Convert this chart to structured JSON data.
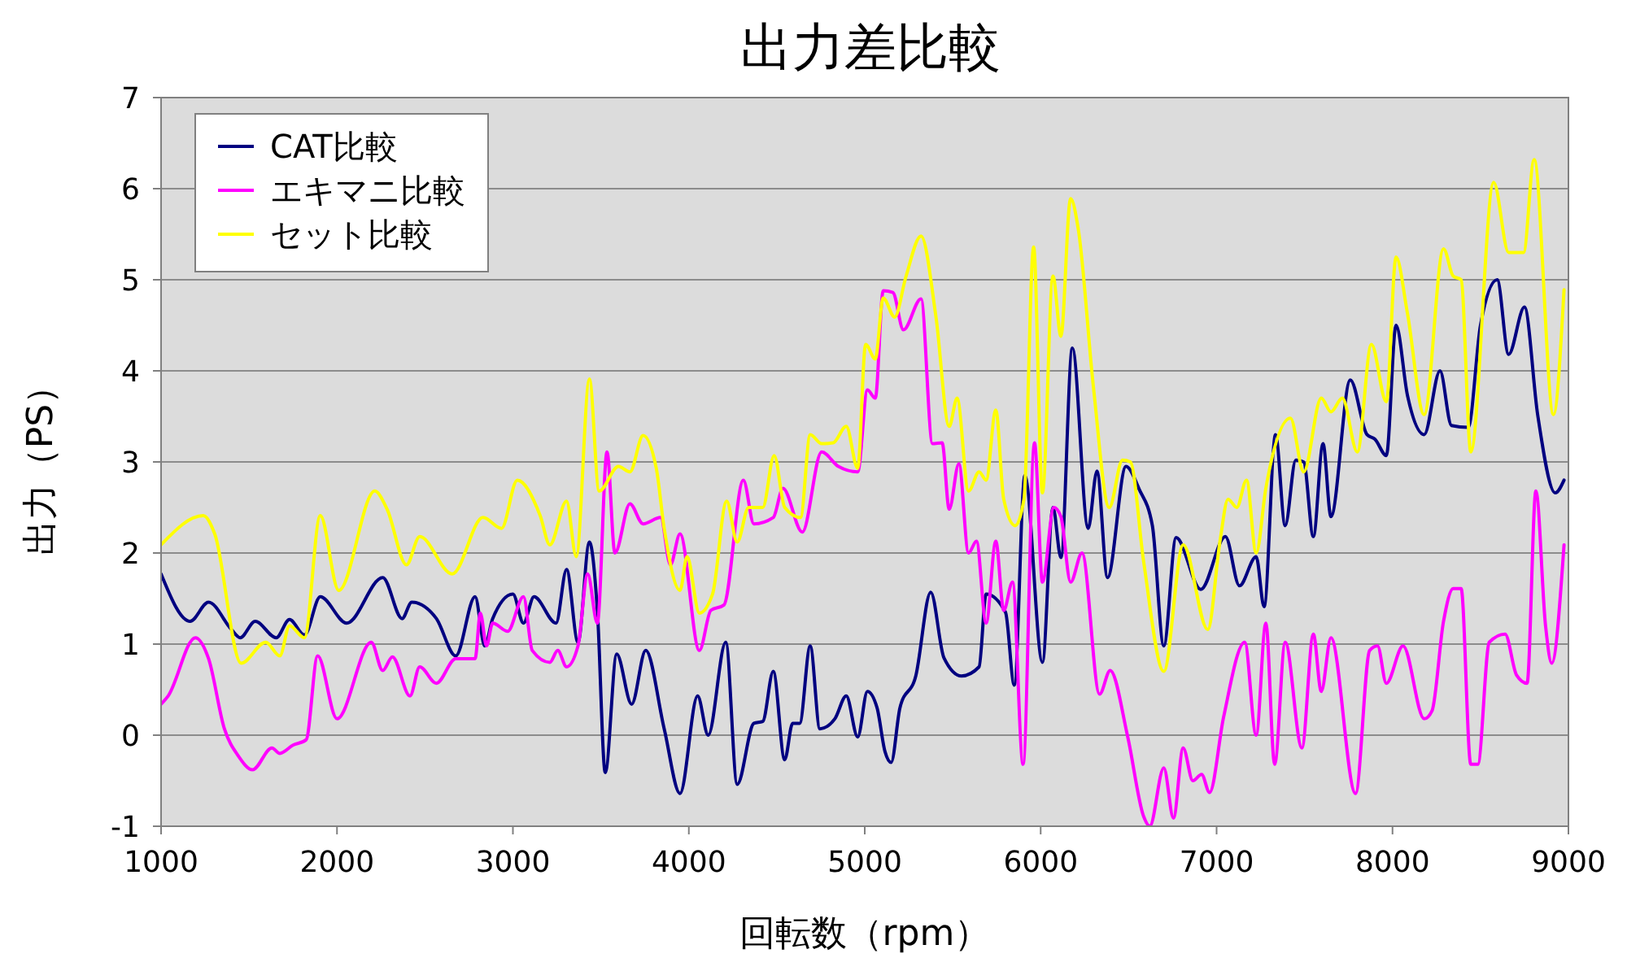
{
  "chart_data": {
    "type": "line",
    "title": "出力差比較",
    "xlabel": "回転数（rpm）",
    "ylabel": "出力（PS）",
    "xlim": [
      1000,
      9000
    ],
    "xticks": [
      1000,
      2000,
      3000,
      4000,
      5000,
      6000,
      7000,
      8000,
      9000
    ],
    "ylim": [
      -1,
      7
    ],
    "yticks": [
      -1,
      0,
      1,
      2,
      3,
      4,
      5,
      6,
      7
    ],
    "grid": "y",
    "legend": "top left",
    "line_style": "solid",
    "marker": "none",
    "series": [
      {
        "name": "CAT比較",
        "color": "#000080",
        "x": [
          1000,
          1165,
          1270,
          1400,
          1450,
          1535,
          1655,
          1730,
          1815,
          1905,
          2055,
          2260,
          2370,
          2425,
          2565,
          2675,
          2785,
          2840,
          2885,
          3000,
          3060,
          3120,
          3245,
          3305,
          3370,
          3435,
          3480,
          3525,
          3590,
          3675,
          3755,
          3860,
          3950,
          4050,
          4110,
          4210,
          4275,
          4370,
          4420,
          4480,
          4545,
          4590,
          4630,
          4690,
          4745,
          4830,
          4895,
          4960,
          5015,
          5070,
          5115,
          5150,
          5200,
          5290,
          5375,
          5450,
          5550,
          5650,
          5690,
          5800,
          5850,
          5910,
          6010,
          6070,
          6115,
          6180,
          6270,
          6320,
          6380,
          6485,
          6560,
          6635,
          6700,
          6770,
          6910,
          7050,
          7130,
          7225,
          7270,
          7335,
          7390,
          7450,
          7495,
          7550,
          7605,
          7650,
          7760,
          7855,
          7900,
          7965,
          8020,
          8085,
          8180,
          8270,
          8335,
          8430,
          8500,
          8595,
          8660,
          8750,
          8825,
          8925,
          8975
        ],
        "values": [
          1.77,
          1.25,
          1.46,
          1.16,
          1.07,
          1.25,
          1.07,
          1.27,
          1.1,
          1.52,
          1.23,
          1.73,
          1.28,
          1.46,
          1.28,
          0.87,
          1.52,
          0.98,
          1.28,
          1.55,
          1.23,
          1.52,
          1.23,
          1.82,
          1.02,
          2.12,
          1.37,
          -0.41,
          0.89,
          0.34,
          0.93,
          0.07,
          -0.64,
          0.43,
          0.0,
          1.02,
          -0.54,
          0.13,
          0.15,
          0.7,
          -0.27,
          0.13,
          0.13,
          0.98,
          0.07,
          0.18,
          0.43,
          -0.02,
          0.48,
          0.3,
          -0.18,
          -0.3,
          0.3,
          0.65,
          1.57,
          0.85,
          0.65,
          0.75,
          1.55,
          1.35,
          0.55,
          2.85,
          0.8,
          2.5,
          1.95,
          4.25,
          2.27,
          2.9,
          1.73,
          2.95,
          2.7,
          2.3,
          0.98,
          2.17,
          1.6,
          2.18,
          1.64,
          1.96,
          1.41,
          3.3,
          2.3,
          3.02,
          3.0,
          2.18,
          3.2,
          2.4,
          3.9,
          3.3,
          3.25,
          3.07,
          4.5,
          3.73,
          3.3,
          4.0,
          3.4,
          3.38,
          4.5,
          5.0,
          4.18,
          4.7,
          3.52,
          2.66,
          2.8
        ]
      },
      {
        "name": "エキマニ比較",
        "color": "#ff00ff",
        "x": [
          1000,
          1040,
          1195,
          1270,
          1360,
          1440,
          1520,
          1630,
          1675,
          1750,
          1825,
          1890,
          2000,
          2195,
          2260,
          2315,
          2415,
          2470,
          2565,
          2675,
          2785,
          2815,
          2850,
          2885,
          2970,
          3060,
          3110,
          3210,
          3255,
          3305,
          3370,
          3425,
          3480,
          3535,
          3580,
          3665,
          3740,
          3840,
          3895,
          3950,
          4060,
          4125,
          4200,
          4310,
          4370,
          4480,
          4535,
          4645,
          4755,
          4850,
          4960,
          5015,
          5060,
          5105,
          5160,
          5220,
          5320,
          5385,
          5440,
          5480,
          5535,
          5590,
          5635,
          5690,
          5745,
          5790,
          5840,
          5900,
          5965,
          6010,
          6075,
          6115,
          6170,
          6235,
          6335,
          6395,
          6495,
          6585,
          6620,
          6700,
          6755,
          6810,
          6865,
          6915,
          6960,
          7040,
          7160,
          7225,
          7280,
          7330,
          7390,
          7485,
          7550,
          7595,
          7650,
          7790,
          7870,
          7915,
          7965,
          8060,
          8180,
          8225,
          8290,
          8345,
          8390,
          8445,
          8485,
          8550,
          8640,
          8705,
          8765,
          8815,
          8870,
          8905,
          8975
        ],
        "values": [
          0.34,
          0.43,
          1.07,
          0.84,
          0.07,
          -0.23,
          -0.38,
          -0.14,
          -0.2,
          -0.11,
          -0.05,
          0.87,
          0.18,
          1.02,
          0.71,
          0.86,
          0.43,
          0.75,
          0.57,
          0.84,
          0.84,
          1.34,
          0.98,
          1.23,
          1.14,
          1.52,
          0.93,
          0.8,
          0.93,
          0.75,
          0.98,
          1.77,
          1.23,
          3.11,
          2.0,
          2.54,
          2.32,
          2.39,
          1.87,
          2.21,
          0.93,
          1.37,
          1.43,
          2.8,
          2.32,
          2.39,
          2.71,
          2.23,
          3.11,
          2.95,
          2.89,
          3.79,
          3.7,
          4.88,
          4.86,
          4.45,
          4.79,
          3.2,
          3.21,
          2.48,
          2.98,
          2.0,
          2.13,
          1.23,
          2.13,
          1.37,
          1.68,
          -0.32,
          3.21,
          1.68,
          2.5,
          2.4,
          1.68,
          2.0,
          0.45,
          0.71,
          -0.02,
          -0.89,
          -1.0,
          -0.36,
          -0.91,
          -0.14,
          -0.5,
          -0.43,
          -0.63,
          0.2,
          1.02,
          0.0,
          1.23,
          -0.32,
          1.02,
          -0.14,
          1.11,
          0.48,
          1.07,
          -0.64,
          0.93,
          0.98,
          0.57,
          0.98,
          0.18,
          0.27,
          1.25,
          1.61,
          1.61,
          -0.32,
          -0.32,
          1.02,
          1.11,
          0.66,
          0.57,
          2.68,
          1.2,
          0.79,
          2.09
        ]
      },
      {
        "name": "セット比較",
        "color": "#ffff00",
        "x": [
          1000,
          1240,
          1305,
          1455,
          1595,
          1675,
          1730,
          1815,
          1905,
          2010,
          2215,
          2285,
          2395,
          2470,
          2655,
          2830,
          2935,
          3025,
          3155,
          3210,
          3305,
          3360,
          3435,
          3490,
          3600,
          3665,
          3740,
          3815,
          3860,
          3950,
          3990,
          4060,
          4135,
          4215,
          4275,
          4340,
          4420,
          4485,
          4545,
          4635,
          4690,
          4755,
          4820,
          4895,
          4960,
          5005,
          5060,
          5105,
          5170,
          5235,
          5320,
          5405,
          5480,
          5525,
          5590,
          5650,
          5690,
          5745,
          5790,
          5855,
          5905,
          5960,
          6010,
          6070,
          6115,
          6170,
          6215,
          6300,
          6390,
          6465,
          6510,
          6585,
          6700,
          6810,
          6950,
          7020,
          7065,
          7115,
          7170,
          7225,
          7280,
          7420,
          7495,
          7595,
          7650,
          7715,
          7800,
          7880,
          7965,
          8020,
          8085,
          8180,
          8290,
          8345,
          8390,
          8445,
          8575,
          8660,
          8745,
          8805,
          8915,
          8975
        ],
        "values": [
          2.09,
          2.41,
          2.21,
          0.79,
          1.02,
          0.87,
          1.2,
          1.07,
          2.41,
          1.59,
          2.68,
          2.48,
          1.87,
          2.18,
          1.77,
          2.39,
          2.27,
          2.8,
          2.41,
          2.09,
          2.57,
          1.96,
          3.91,
          2.68,
          2.95,
          2.89,
          3.29,
          2.93,
          2.27,
          1.59,
          1.96,
          1.34,
          1.55,
          2.57,
          2.12,
          2.5,
          2.5,
          3.07,
          2.5,
          2.39,
          3.3,
          3.2,
          3.21,
          3.39,
          2.93,
          4.29,
          4.13,
          4.8,
          4.59,
          5.04,
          5.48,
          4.59,
          3.39,
          3.7,
          2.68,
          2.89,
          2.8,
          3.57,
          2.59,
          2.3,
          2.59,
          5.36,
          2.66,
          5.04,
          4.38,
          5.89,
          5.54,
          3.82,
          2.5,
          3.02,
          3.0,
          1.91,
          0.7,
          2.09,
          1.16,
          2.14,
          2.59,
          2.5,
          2.8,
          2.0,
          2.71,
          3.48,
          2.89,
          3.7,
          3.55,
          3.7,
          3.11,
          4.29,
          3.66,
          5.25,
          4.63,
          3.52,
          5.34,
          5.04,
          5.0,
          3.11,
          6.07,
          5.3,
          5.3,
          6.32,
          3.52,
          4.89
        ]
      }
    ]
  }
}
